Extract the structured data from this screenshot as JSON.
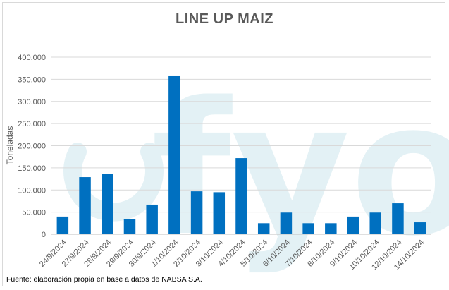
{
  "chart_data": {
    "type": "bar",
    "title": "LINE UP MAIZ",
    "ylabel": "Toneladas",
    "xlabel": "",
    "source": "Fuente: elaboración propia en base a datos de NABSA S.A.",
    "watermark": "fyo",
    "categories": [
      "24/9/2024",
      "27/9/2024",
      "28/9/2024",
      "29/9/2024",
      "30/9/2024",
      "1/10/2024",
      "2/10/2024",
      "3/10/2024",
      "4/10/2024",
      "5/10/2024",
      "6/10/2024",
      "7/10/2024",
      "8/10/2024",
      "9/10/2024",
      "10/10/2024",
      "12/10/2024",
      "14/10/2024"
    ],
    "values": [
      40000,
      129000,
      137000,
      35000,
      67000,
      357000,
      97000,
      95000,
      172000,
      25000,
      49000,
      25000,
      25000,
      40000,
      49000,
      70000,
      27000
    ],
    "yticks": [
      0,
      50000,
      100000,
      150000,
      200000,
      250000,
      300000,
      350000,
      400000
    ],
    "ytick_labels": [
      "0",
      "50.000",
      "100.000",
      "150.000",
      "200.000",
      "250.000",
      "300.000",
      "350.000",
      "400.000"
    ],
    "ylim": [
      0,
      400000
    ],
    "grid": true,
    "legend": false,
    "colors": {
      "bar": "#0070c0",
      "grid": "#d9d9d9",
      "text": "#595959",
      "watermark": "#e3f1f5"
    }
  }
}
